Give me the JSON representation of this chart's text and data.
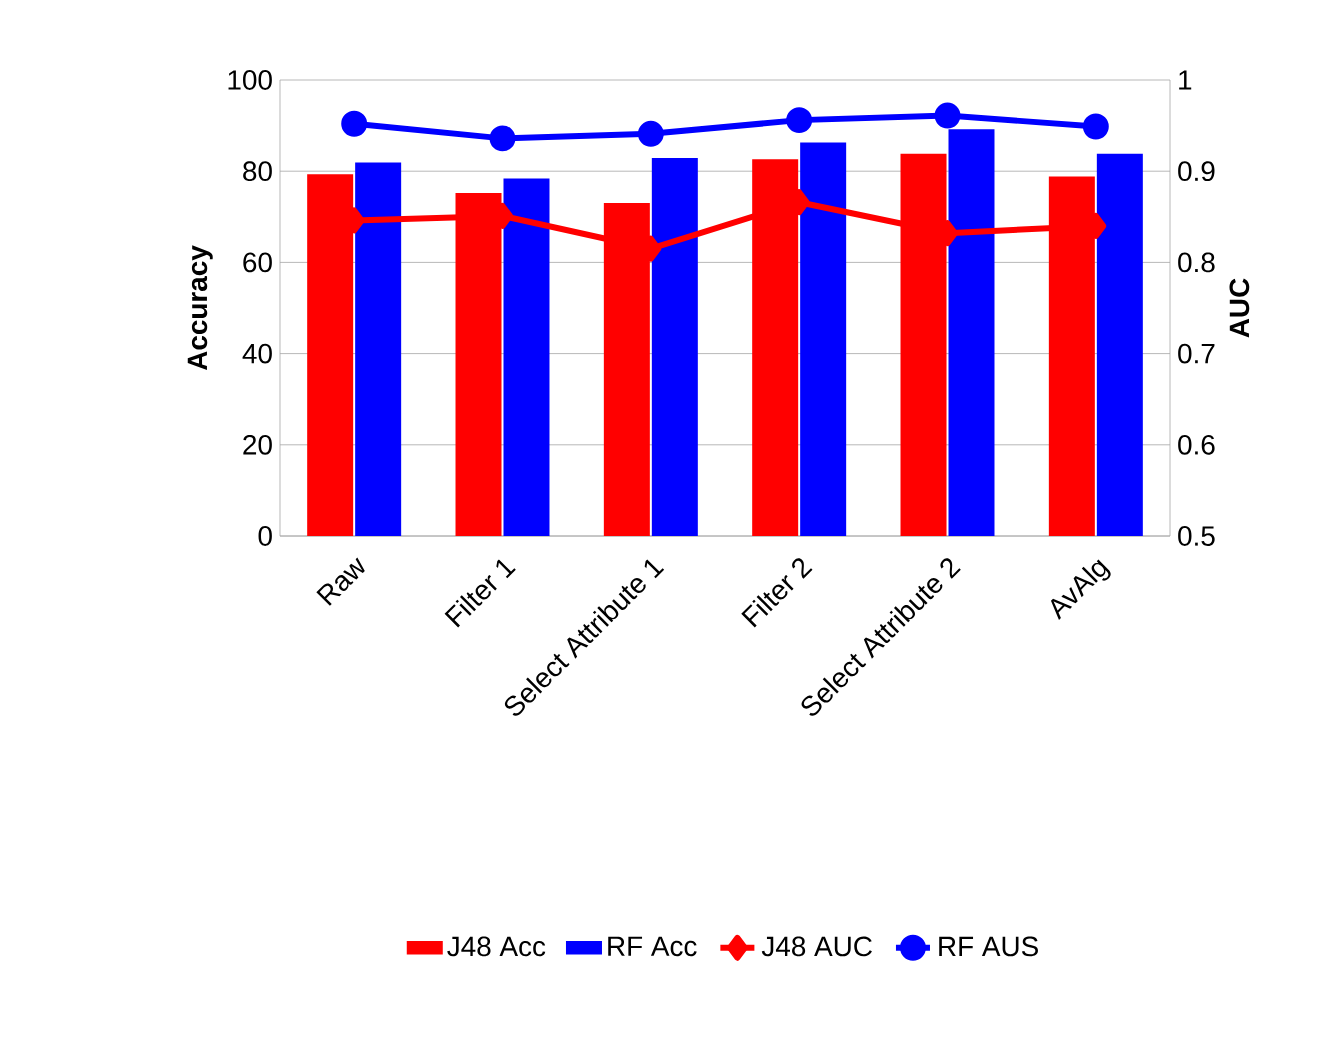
{
  "chart_data": {
    "type": "bar",
    "ylabel": "Accuracy",
    "y2label": "AUC",
    "categories": [
      "Raw",
      "Filter 1",
      "Select Attribute 1",
      "Filter 2",
      "Select Attribute 2",
      "AvAlg"
    ],
    "series": [
      {
        "name": "J48 Acc",
        "color": "#ff0000",
        "values": [
          79.1,
          75.0,
          72.8,
          82.4,
          83.6,
          78.6
        ]
      },
      {
        "name": "RF Acc",
        "color": "#0000ff",
        "values": [
          81.7,
          78.2,
          82.7,
          86.1,
          89.0,
          83.6
        ]
      },
      {
        "name": "J48 AUC",
        "type": "line",
        "axis": "y2",
        "marker": "diamond",
        "color": "#ff0000",
        "values": [
          0.846,
          0.851,
          0.815,
          0.866,
          0.832,
          0.84
        ]
      },
      {
        "name": "RF AUS",
        "type": "line",
        "axis": "y2",
        "marker": "circle",
        "color": "#0000ff",
        "values": [
          0.952,
          0.936,
          0.941,
          0.956,
          0.961,
          0.949
        ]
      }
    ],
    "ylim": [
      0,
      100
    ],
    "yticks": [
      0,
      20,
      40,
      60,
      80,
      100
    ],
    "y2lim": [
      0.5,
      1
    ],
    "y2ticks": [
      0.5,
      0.6,
      0.7,
      0.8,
      0.9,
      1
    ],
    "grid": "y",
    "legend": "bottom"
  }
}
